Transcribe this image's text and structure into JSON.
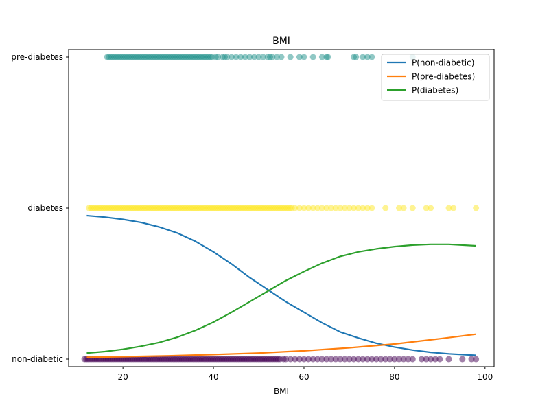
{
  "chart_data": {
    "type": "scatter",
    "title": "BMI",
    "xlabel": "BMI",
    "ylabel": "",
    "xlim": [
      8,
      102
    ],
    "ylim": [
      -0.05,
      2.05
    ],
    "x_ticks": [
      20,
      40,
      60,
      80,
      100
    ],
    "y_ticks": [
      {
        "value": 0,
        "label": "non-diabetic"
      },
      {
        "value": 1,
        "label": "diabetes"
      },
      {
        "value": 2,
        "label": "pre-diabetes"
      }
    ],
    "grid": false,
    "legend_position": "top-right",
    "scatter_series": [
      {
        "y": 2,
        "color": "#21918c",
        "dense_range": [
          16.5,
          40
        ],
        "x": [
          40.5,
          41,
          42,
          42.5,
          43,
          44,
          45,
          46,
          47,
          48,
          49,
          50,
          51,
          52,
          52.5,
          53,
          54,
          55,
          57,
          59,
          60,
          62,
          64,
          65,
          65.3,
          71,
          71.5,
          73,
          74,
          75,
          84
        ]
      },
      {
        "y": 1,
        "color": "#fde725",
        "dense_range": [
          12.5,
          57.5
        ],
        "x": [
          58,
          59,
          60,
          61,
          62,
          63,
          64,
          65,
          66,
          67,
          68,
          69,
          70,
          71,
          72,
          73,
          74,
          75,
          78,
          81,
          82,
          84,
          87,
          88,
          92,
          93,
          98
        ]
      },
      {
        "y": 0,
        "color": "#440154",
        "dense_range": [
          11.5,
          55
        ],
        "x": [
          55.5,
          56,
          57,
          58,
          59,
          60,
          61,
          62,
          63,
          64,
          65,
          66,
          67,
          68,
          69,
          70,
          71,
          72,
          73,
          74,
          75,
          76,
          77,
          78,
          79,
          80,
          81,
          82,
          83,
          84,
          86,
          87,
          88,
          89,
          90,
          92,
          95,
          97,
          98
        ]
      }
    ],
    "curves": [
      {
        "name": "P(non-diabetic)",
        "color": "#1f77b4",
        "x": [
          12,
          16,
          20,
          24,
          28,
          32,
          36,
          40,
          44,
          48,
          52,
          56,
          60,
          64,
          68,
          72,
          76,
          80,
          84,
          88,
          92,
          98
        ],
        "values": [
          0.95,
          0.94,
          0.925,
          0.905,
          0.875,
          0.835,
          0.78,
          0.71,
          0.63,
          0.54,
          0.46,
          0.38,
          0.31,
          0.24,
          0.18,
          0.14,
          0.105,
          0.08,
          0.06,
          0.045,
          0.035,
          0.025
        ]
      },
      {
        "name": "P(pre-diabetes)",
        "color": "#ff7f0e",
        "x": [
          12,
          20,
          30,
          40,
          50,
          60,
          70,
          80,
          90,
          98
        ],
        "values": [
          0.012,
          0.016,
          0.022,
          0.03,
          0.04,
          0.055,
          0.075,
          0.1,
          0.135,
          0.165
        ]
      },
      {
        "name": "P(diabetes)",
        "color": "#2ca02c",
        "x": [
          12,
          16,
          20,
          24,
          28,
          32,
          36,
          40,
          44,
          48,
          52,
          56,
          60,
          64,
          68,
          72,
          76,
          80,
          84,
          88,
          92,
          98
        ],
        "values": [
          0.04,
          0.05,
          0.065,
          0.085,
          0.11,
          0.145,
          0.19,
          0.245,
          0.31,
          0.38,
          0.45,
          0.52,
          0.58,
          0.635,
          0.68,
          0.71,
          0.73,
          0.745,
          0.755,
          0.76,
          0.76,
          0.75
        ]
      }
    ]
  }
}
